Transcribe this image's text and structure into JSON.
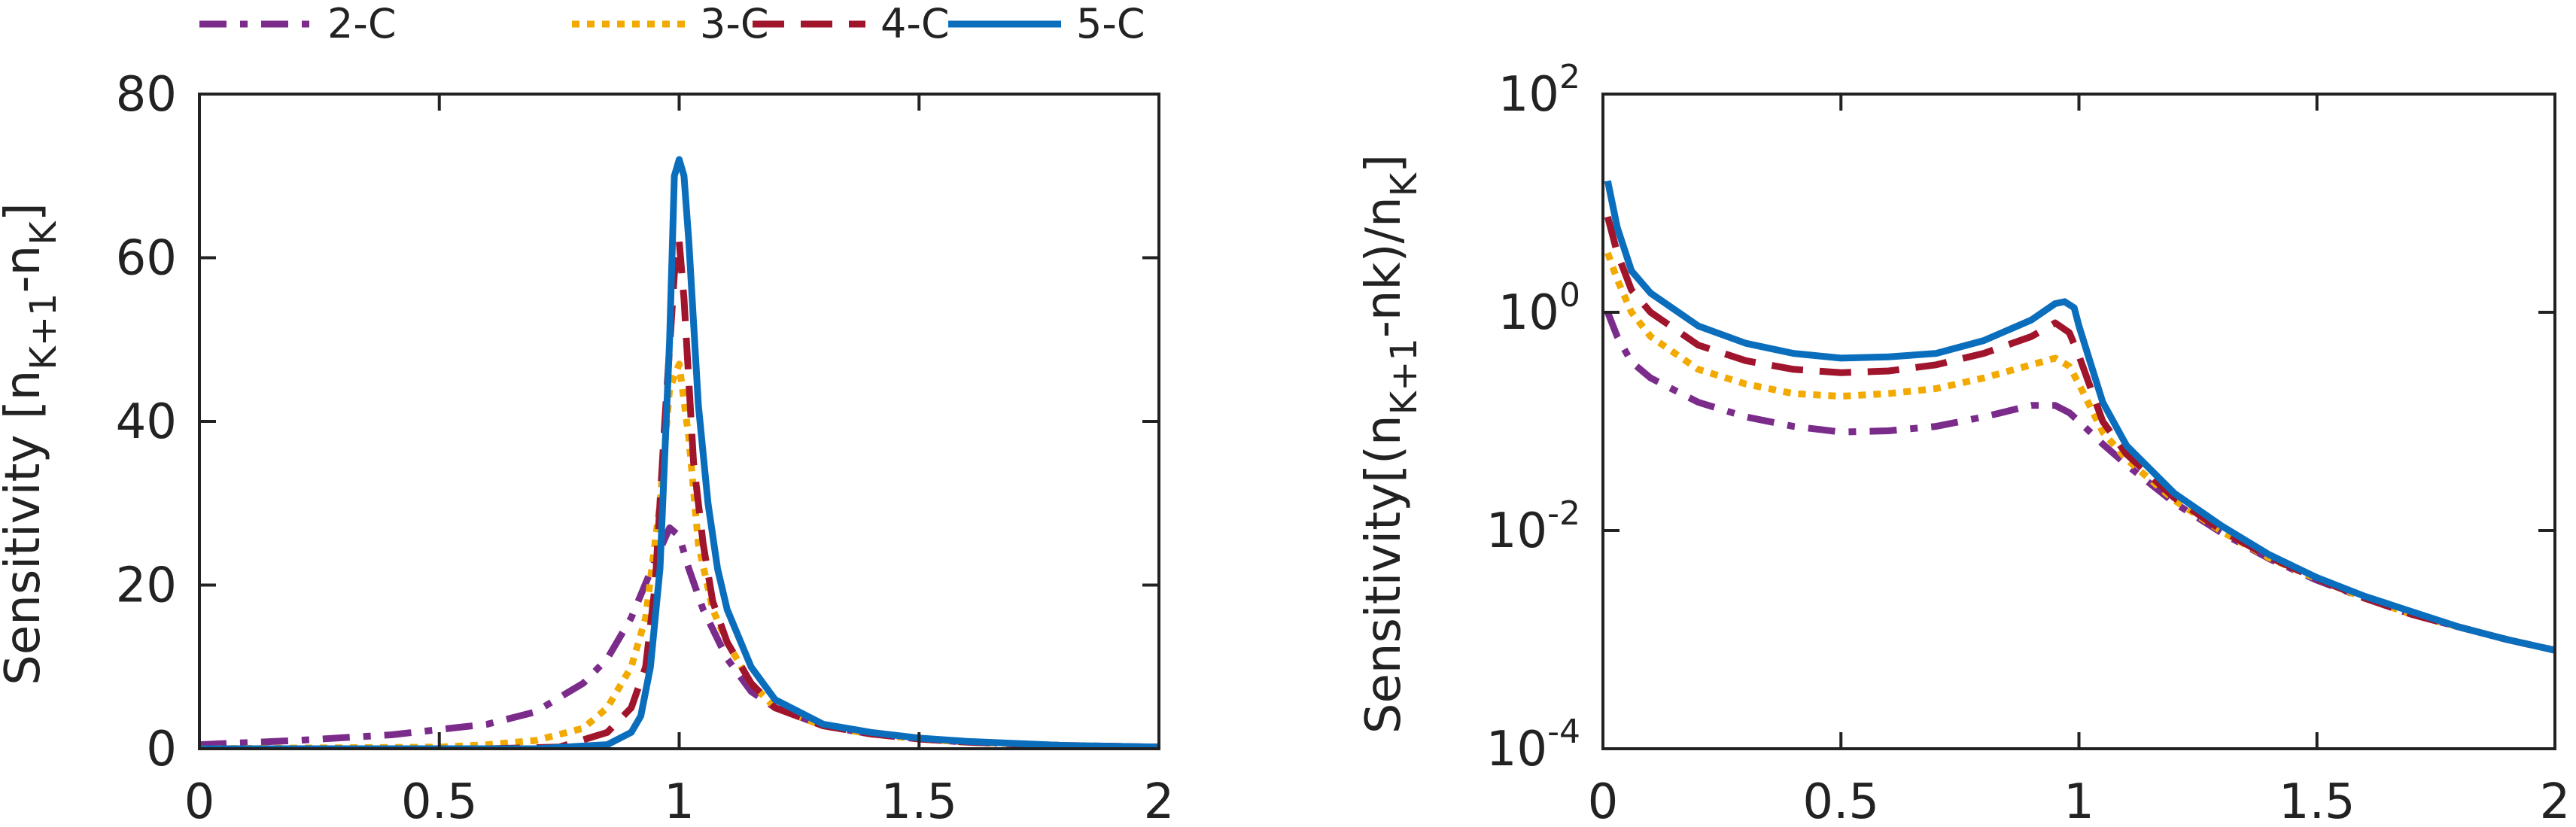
{
  "legend": [
    {
      "label": "2-C",
      "color": "#7B2C8B",
      "dash": "dashdot"
    },
    {
      "label": "3-C",
      "color": "#F2A900",
      "dash": "dotted"
    },
    {
      "label": "4-C",
      "color": "#A0142C",
      "dash": "dashed"
    },
    {
      "label": "5-C",
      "color": "#0A6EBD",
      "dash": "solid"
    }
  ],
  "chart_data": [
    {
      "type": "line",
      "yscale": "linear",
      "xlim": [
        0,
        2
      ],
      "ylim": [
        0,
        80
      ],
      "xticks": [
        "0",
        "0.5",
        "1",
        "1.5",
        "2"
      ],
      "yticks": [
        "0",
        "20",
        "40",
        "60",
        "80"
      ],
      "ylabel_main": "Sensitivity [n",
      "ylabel_sub": "K+1",
      "ylabel_mid": "-n",
      "ylabel_sub2": "K",
      "ylabel_end": "]",
      "grid": false,
      "series": [
        {
          "name": "2-C",
          "x": [
            0,
            0.2,
            0.4,
            0.6,
            0.7,
            0.8,
            0.85,
            0.9,
            0.95,
            0.98,
            1.0,
            1.02,
            1.05,
            1.1,
            1.15,
            1.2,
            1.3,
            1.4,
            1.5,
            1.6,
            1.8,
            2.0
          ],
          "y": [
            0.5,
            1.0,
            1.7,
            3.0,
            4.5,
            8,
            11,
            16,
            23,
            27,
            26,
            22,
            17,
            11,
            7,
            5,
            2.8,
            1.8,
            1.2,
            0.8,
            0.4,
            0.2
          ]
        },
        {
          "name": "3-C",
          "x": [
            0,
            0.5,
            0.6,
            0.7,
            0.8,
            0.85,
            0.9,
            0.93,
            0.96,
            0.98,
            1.0,
            1.02,
            1.04,
            1.07,
            1.1,
            1.15,
            1.2,
            1.3,
            1.4,
            1.5,
            1.6,
            1.8,
            2.0
          ],
          "y": [
            0,
            0.2,
            0.5,
            1.0,
            2.5,
            5,
            10,
            16,
            30,
            44,
            47,
            38,
            25,
            17,
            13,
            8,
            5,
            2.8,
            1.8,
            1.2,
            0.8,
            0.4,
            0.2
          ]
        },
        {
          "name": "4-C",
          "x": [
            0,
            0.6,
            0.75,
            0.85,
            0.9,
            0.93,
            0.95,
            0.97,
            0.99,
            1.0,
            1.01,
            1.03,
            1.05,
            1.07,
            1.1,
            1.15,
            1.2,
            1.3,
            1.4,
            1.5,
            1.6,
            1.8,
            2.0
          ],
          "y": [
            0,
            0,
            0.2,
            2,
            5,
            10,
            20,
            40,
            58,
            62,
            55,
            35,
            25,
            18,
            13,
            8,
            5,
            2.8,
            1.8,
            1.2,
            0.8,
            0.4,
            0.2
          ]
        },
        {
          "name": "5-C",
          "x": [
            0,
            0.7,
            0.85,
            0.9,
            0.92,
            0.94,
            0.96,
            0.98,
            0.99,
            1.0,
            1.01,
            1.02,
            1.04,
            1.06,
            1.08,
            1.1,
            1.15,
            1.2,
            1.3,
            1.4,
            1.5,
            1.6,
            1.8,
            2.0
          ],
          "y": [
            0,
            0,
            0.5,
            2,
            4,
            10,
            22,
            50,
            70,
            72,
            70,
            62,
            42,
            30,
            22,
            17,
            10,
            6,
            3,
            2,
            1.3,
            0.9,
            0.4,
            0.2
          ]
        }
      ]
    },
    {
      "type": "line",
      "yscale": "log",
      "xlim": [
        0,
        2
      ],
      "ylim": [
        0.0001,
        100
      ],
      "xticks": [
        "0",
        "0.5",
        "1",
        "1.5",
        "2"
      ],
      "ytick_values": [
        0.0001,
        0.01,
        1,
        100
      ],
      "ytick_bases": [
        "10",
        "10",
        "10",
        "10"
      ],
      "ytick_exps": [
        "-4",
        "-2",
        "0",
        "2"
      ],
      "ylabel_main": "Sensitivity[(n",
      "ylabel_sub": "K+1",
      "ylabel_mid": "-nk)/n",
      "ylabel_sub2": "K",
      "ylabel_end": "]",
      "grid": false,
      "series": [
        {
          "name": "2-C",
          "x": [
            0.01,
            0.03,
            0.06,
            0.1,
            0.2,
            0.3,
            0.4,
            0.5,
            0.6,
            0.7,
            0.8,
            0.9,
            0.95,
            0.98,
            1.0,
            1.05,
            1.1,
            1.2,
            1.3,
            1.4,
            1.5,
            1.6,
            1.7,
            1.8,
            1.9,
            2.0
          ],
          "y": [
            1.0,
            0.6,
            0.35,
            0.25,
            0.15,
            0.11,
            0.09,
            0.08,
            0.082,
            0.09,
            0.11,
            0.14,
            0.14,
            0.12,
            0.1,
            0.062,
            0.04,
            0.018,
            0.0095,
            0.0055,
            0.0035,
            0.0024,
            0.0017,
            0.0013,
            0.001,
            0.0008
          ]
        },
        {
          "name": "3-C",
          "x": [
            0.01,
            0.03,
            0.06,
            0.1,
            0.2,
            0.3,
            0.4,
            0.5,
            0.6,
            0.7,
            0.8,
            0.9,
            0.95,
            0.98,
            1.0,
            1.05,
            1.1,
            1.2,
            1.3,
            1.4,
            1.5,
            1.6,
            1.7,
            1.8,
            1.9,
            2.0
          ],
          "y": [
            3.5,
            2.0,
            1.0,
            0.6,
            0.3,
            0.22,
            0.18,
            0.17,
            0.18,
            0.2,
            0.25,
            0.33,
            0.38,
            0.32,
            0.22,
            0.08,
            0.045,
            0.019,
            0.0098,
            0.0056,
            0.0036,
            0.0024,
            0.0017,
            0.0013,
            0.001,
            0.0008
          ]
        },
        {
          "name": "4-C",
          "x": [
            0.01,
            0.03,
            0.06,
            0.1,
            0.2,
            0.3,
            0.4,
            0.5,
            0.6,
            0.7,
            0.8,
            0.9,
            0.95,
            0.98,
            1.0,
            1.05,
            1.1,
            1.2,
            1.3,
            1.4,
            1.5,
            1.6,
            1.7,
            1.8,
            1.9,
            2.0
          ],
          "y": [
            7.5,
            3.5,
            1.6,
            1.0,
            0.5,
            0.36,
            0.3,
            0.28,
            0.29,
            0.33,
            0.42,
            0.6,
            0.8,
            0.65,
            0.4,
            0.1,
            0.05,
            0.02,
            0.01,
            0.0057,
            0.0036,
            0.0024,
            0.0017,
            0.0013,
            0.001,
            0.0008
          ]
        },
        {
          "name": "5-C",
          "x": [
            0.01,
            0.03,
            0.06,
            0.1,
            0.2,
            0.3,
            0.4,
            0.5,
            0.6,
            0.7,
            0.8,
            0.9,
            0.95,
            0.97,
            0.99,
            1.0,
            1.05,
            1.1,
            1.2,
            1.3,
            1.4,
            1.5,
            1.6,
            1.7,
            1.8,
            1.9,
            2.0
          ],
          "y": [
            16,
            6,
            2.4,
            1.5,
            0.75,
            0.52,
            0.42,
            0.38,
            0.39,
            0.42,
            0.55,
            0.85,
            1.2,
            1.25,
            1.1,
            0.75,
            0.15,
            0.06,
            0.022,
            0.011,
            0.006,
            0.0037,
            0.0025,
            0.0018,
            0.0013,
            0.001,
            0.0008
          ]
        }
      ]
    }
  ]
}
